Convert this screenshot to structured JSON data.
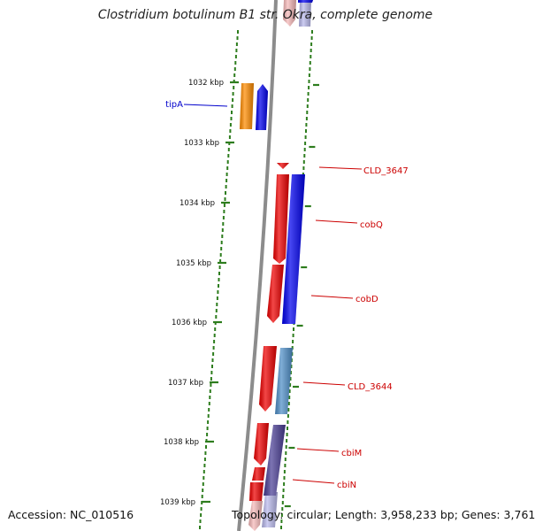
{
  "title": "Clostridium botulinum B1 str. Okra, complete genome",
  "accession": "Accession: NC_010516",
  "topology": "Topology: circular; Length: 3,958,233 bp; Genes: 3,761",
  "colors": {
    "backbone": "#8c8c8c",
    "tick": "#2e7d1e",
    "forward_gene": "#ee0000",
    "reverse_gene": "#0000ee",
    "orange_gene": "#ff8c00",
    "steelblue_gene": "#4f8fc8",
    "slate_gene": "#4a3e95",
    "faded_red": "#f6b8b8",
    "faded_blue": "#b9b9ec",
    "label_red": "#cc0000",
    "label_blue": "#0000cc"
  },
  "scale_labels": [
    "1032 kbp",
    "1033 kbp",
    "1034 kbp",
    "1035 kbp",
    "1036 kbp",
    "1037 kbp",
    "1038 kbp",
    "1039 kbp"
  ],
  "gene_labels": [
    {
      "name": "tipA",
      "color": "label_blue"
    },
    {
      "name": "CLD_3647",
      "color": "label_red"
    },
    {
      "name": "cobQ",
      "color": "label_red"
    },
    {
      "name": "cobD",
      "color": "label_red"
    },
    {
      "name": "CLD_3644",
      "color": "label_red"
    },
    {
      "name": "cbiM",
      "color": "label_red"
    },
    {
      "name": "cbiN",
      "color": "label_red"
    }
  ]
}
